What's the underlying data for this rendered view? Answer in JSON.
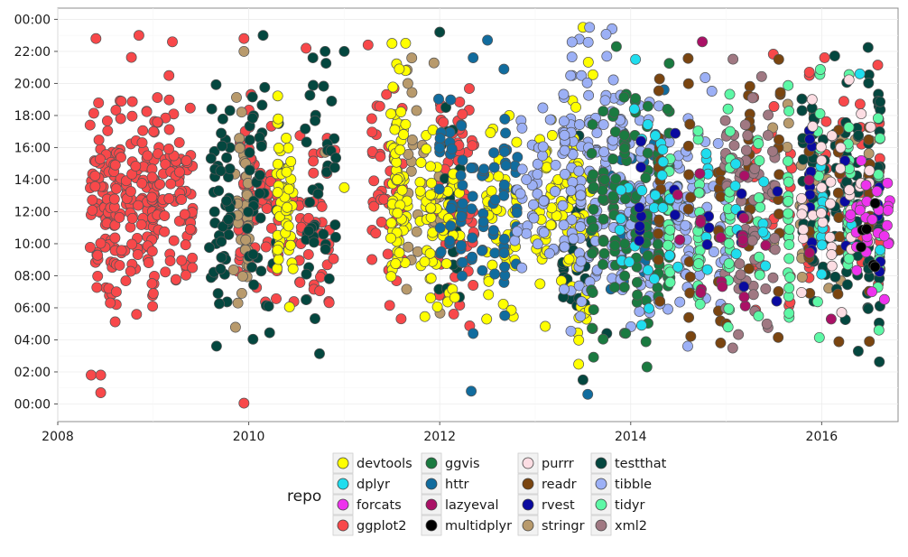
{
  "chart_data": {
    "type": "scatter",
    "title": "",
    "xlabel": "",
    "ylabel": "",
    "xlim": [
      2008.0,
      2016.8
    ],
    "ylim": [
      -1.1,
      24.7
    ],
    "x_ticks": [
      2008,
      2010,
      2012,
      2014,
      2016
    ],
    "x_tick_labels": [
      "2008",
      "2010",
      "2012",
      "2014",
      "2016"
    ],
    "y_ticks": [
      0,
      2,
      4,
      6,
      8,
      10,
      12,
      14,
      16,
      18,
      20,
      22,
      24
    ],
    "y_tick_labels": [
      "00:00",
      "02:00",
      "04:00",
      "06:00",
      "08:00",
      "10:00",
      "12:00",
      "14:00",
      "16:00",
      "18:00",
      "20:00",
      "22:00",
      "00:00"
    ],
    "grid": true,
    "legend": {
      "title": "repo",
      "placement": "bottom",
      "columns": 4
    },
    "series": [
      {
        "name": "devtools",
        "color": "#FFFF00",
        "clusters": [
          [
            2010.3,
            2010.45,
            8,
            17,
            50
          ],
          [
            2011.5,
            2011.65,
            8,
            21,
            70
          ],
          [
            2011.8,
            2012.2,
            7,
            15,
            60
          ],
          [
            2012.5,
            2012.8,
            7,
            16,
            50
          ],
          [
            2013.0,
            2013.4,
            7,
            17,
            60
          ],
          [
            2013.4,
            2013.6,
            6,
            20,
            40
          ]
        ],
        "points": [
          [
            2013.5,
            23.5
          ],
          [
            2011.5,
            22.5
          ],
          [
            2011.0,
            13.5
          ]
        ]
      },
      {
        "name": "dplyr",
        "color": "#1FDDEE",
        "clusters": [
          [
            2013.9,
            2014.4,
            8,
            18,
            25
          ],
          [
            2014.5,
            2016.6,
            8,
            16,
            30
          ]
        ],
        "points": [
          [
            2014.05,
            21.5
          ],
          [
            2016.4,
            20.6
          ]
        ]
      },
      {
        "name": "forcats",
        "color": "#EE33EE",
        "clusters": [
          [
            2016.3,
            2016.7,
            8,
            15,
            30
          ]
        ],
        "points": []
      },
      {
        "name": "ggplot2",
        "color": "#F8484A",
        "clusters": [
          [
            2008.35,
            2008.6,
            8,
            17,
            80
          ],
          [
            2008.6,
            2009.0,
            8,
            18,
            110
          ],
          [
            2009.0,
            2009.4,
            8,
            18,
            90
          ],
          [
            2009.9,
            2010.3,
            8,
            17,
            70
          ],
          [
            2010.4,
            2010.9,
            7,
            15,
            50
          ],
          [
            2011.3,
            2011.6,
            7,
            19,
            50
          ],
          [
            2012.0,
            2012.35,
            6,
            18,
            60
          ],
          [
            2015.3,
            2016.6,
            6,
            19,
            70
          ]
        ],
        "points": [
          [
            2008.35,
            1.8
          ],
          [
            2008.45,
            1.8
          ],
          [
            2008.45,
            0.7
          ],
          [
            2009.95,
            0.05
          ],
          [
            2008.55,
            6.3
          ],
          [
            2008.4,
            22.8
          ],
          [
            2008.85,
            23.0
          ],
          [
            2009.2,
            22.6
          ],
          [
            2009.95,
            22.8
          ],
          [
            2010.6,
            22.2
          ],
          [
            2011.25,
            22.4
          ]
        ]
      },
      {
        "name": "ggvis",
        "color": "#1A7A40",
        "clusters": [
          [
            2013.6,
            2014.4,
            6,
            18,
            140
          ]
        ],
        "points": [
          [
            2013.85,
            22.3
          ],
          [
            2014.05,
            18.2
          ]
        ]
      },
      {
        "name": "httr",
        "color": "#116C9E",
        "clusters": [
          [
            2012.0,
            2012.8,
            8,
            18,
            90
          ],
          [
            2013.8,
            2014.6,
            7,
            17,
            50
          ]
        ],
        "points": [
          [
            2012.33,
            0.8
          ],
          [
            2013.55,
            0.6
          ],
          [
            2012.35,
            4.4
          ],
          [
            2012.5,
            22.7
          ],
          [
            2012.35,
            21.6
          ],
          [
            2014.35,
            19.6
          ]
        ]
      },
      {
        "name": "lazyeval",
        "color": "#AA1166",
        "clusters": [
          [
            2014.5,
            2016.1,
            6,
            15,
            20
          ]
        ],
        "points": [
          [
            2014.75,
            22.6
          ],
          [
            2016.1,
            5.3
          ]
        ]
      },
      {
        "name": "multidplyr",
        "color": "#000000",
        "clusters": [
          [
            2016.4,
            2016.55,
            9,
            14,
            6
          ]
        ],
        "points": []
      },
      {
        "name": "purrr",
        "color": "#FCDDE3",
        "clusters": [
          [
            2015.8,
            2016.5,
            8,
            18,
            40
          ]
        ],
        "points": [
          [
            2015.9,
            19.0
          ]
        ]
      },
      {
        "name": "readr",
        "color": "#7A4510",
        "clusters": [
          [
            2014.3,
            2016.5,
            5,
            20,
            90
          ]
        ],
        "points": [
          [
            2015.0,
            5.0
          ],
          [
            2015.55,
            21.5
          ]
        ]
      },
      {
        "name": "rvest",
        "color": "#0A0AA0",
        "clusters": [
          [
            2014.1,
            2016.6,
            8,
            16,
            40
          ]
        ],
        "points": []
      },
      {
        "name": "stringr",
        "color": "#B89A6C",
        "clusters": [
          [
            2009.85,
            2010.0,
            7,
            19,
            40
          ],
          [
            2011.6,
            2012.0,
            8,
            20,
            30
          ],
          [
            2015.5,
            2016.5,
            8,
            17,
            40
          ]
        ],
        "points": [
          [
            2009.95,
            22.0
          ],
          [
            2010.8,
            15.7
          ]
        ]
      },
      {
        "name": "testthat",
        "color": "#04473F",
        "clusters": [
          [
            2009.6,
            2009.8,
            7,
            17,
            50
          ],
          [
            2010.0,
            2010.3,
            7,
            20,
            40
          ],
          [
            2010.6,
            2010.9,
            7,
            20,
            40
          ],
          [
            2012.0,
            2012.2,
            8,
            17,
            25
          ],
          [
            2013.3,
            2013.6,
            6,
            14,
            30
          ],
          [
            2015.8,
            2016.6,
            6,
            22,
            130
          ]
        ],
        "points": [
          [
            2013.5,
            1.5
          ],
          [
            2013.6,
            4.7
          ],
          [
            2013.75,
            4.4
          ],
          [
            2011.0,
            22.0
          ],
          [
            2010.8,
            22.0
          ],
          [
            2012.0,
            23.2
          ],
          [
            2010.15,
            23.0
          ],
          [
            2010.6,
            6.5
          ]
        ]
      },
      {
        "name": "tibble",
        "color": "#9CB0F6",
        "clusters": [
          [
            2012.8,
            2013.2,
            8,
            17,
            40
          ],
          [
            2013.3,
            2013.9,
            7,
            20,
            140
          ],
          [
            2013.9,
            2014.6,
            7,
            17,
            90
          ],
          [
            2014.5,
            2015.0,
            7,
            17,
            50
          ]
        ],
        "points": [
          [
            2013.75,
            21.7
          ],
          [
            2014.2,
            5.7
          ]
        ]
      },
      {
        "name": "tidyr",
        "color": "#5DF8A6",
        "clusters": [
          [
            2014.4,
            2016.6,
            6,
            18,
            140
          ]
        ],
        "points": []
      },
      {
        "name": "xml2",
        "color": "#A07882",
        "clusters": [
          [
            2015.0,
            2015.5,
            6,
            18,
            70
          ]
        ],
        "points": []
      }
    ]
  }
}
